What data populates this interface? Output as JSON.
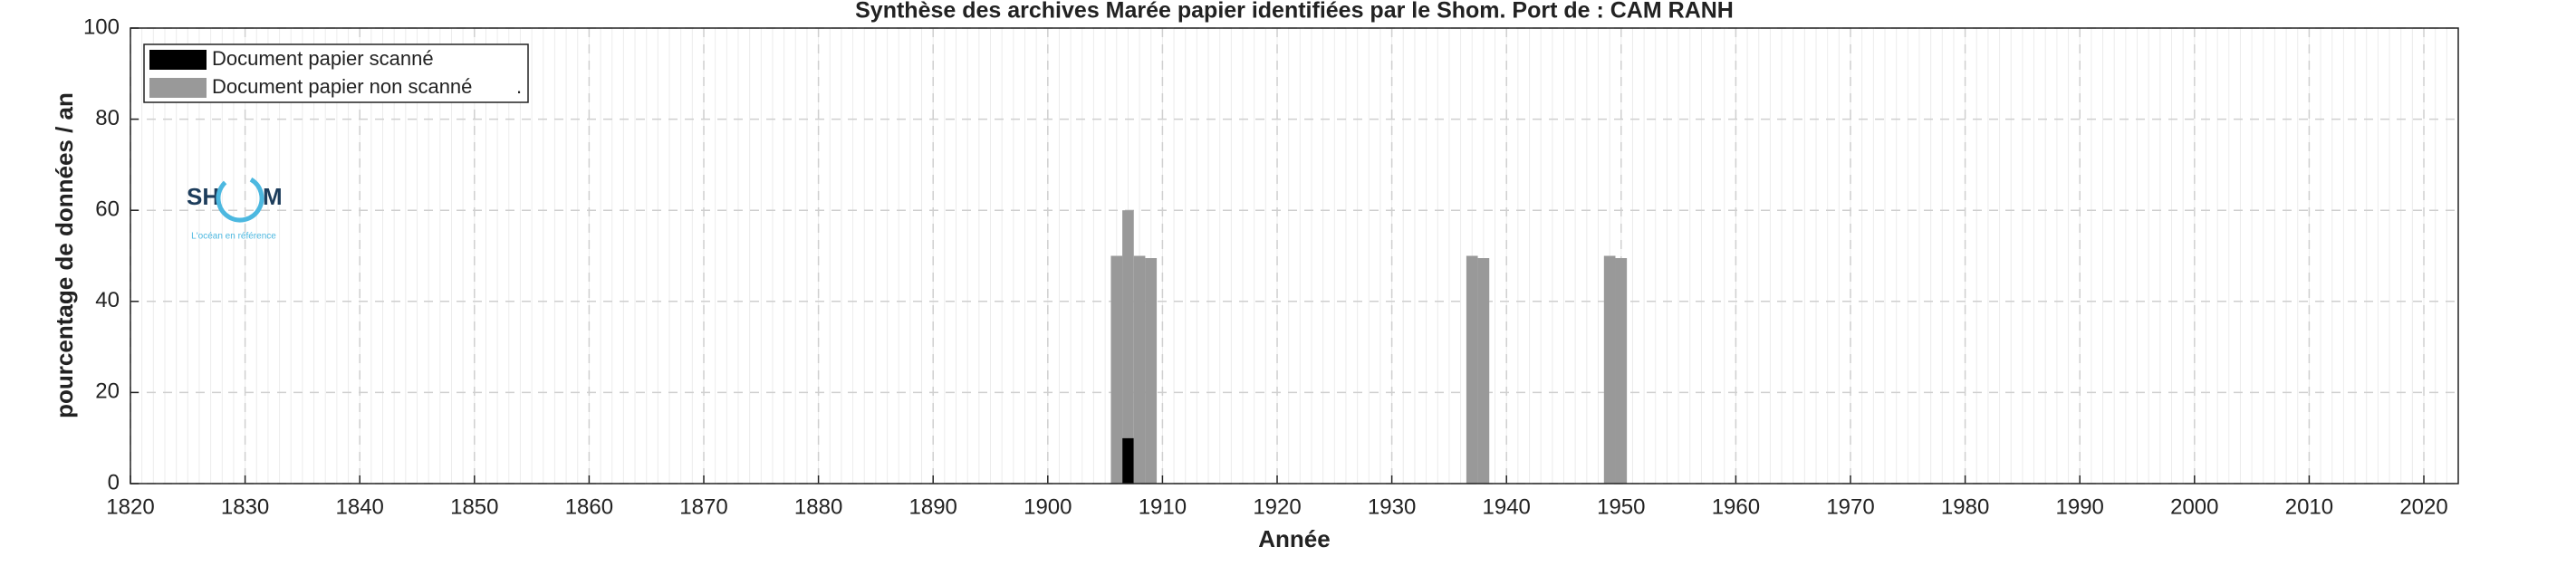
{
  "chart_data": {
    "type": "bar",
    "title": "Synthèse des archives Marée papier identifiées par le Shom. Port de : CAM RANH",
    "xlabel": "Année",
    "ylabel": "pourcentage de données / an",
    "x": [
      1906,
      1907,
      1908,
      1909,
      1937,
      1938,
      1949,
      1950
    ],
    "stacked": true,
    "series": [
      {
        "name": "Document papier scanné",
        "color": "#000000",
        "values": [
          0,
          10,
          0,
          0,
          0,
          0,
          0,
          0
        ]
      },
      {
        "name": "Document papier non scanné",
        "color": "#999999",
        "values": [
          50,
          50,
          50,
          49.5,
          50,
          49.5,
          50,
          49.5
        ]
      }
    ],
    "legend_suffix": ".",
    "legend": "upper left",
    "xlim": [
      1820,
      2023
    ],
    "xticks": [
      1820,
      1830,
      1840,
      1850,
      1860,
      1870,
      1880,
      1890,
      1900,
      1910,
      1920,
      1930,
      1940,
      1950,
      1960,
      1970,
      1980,
      1990,
      2000,
      2010,
      2020
    ],
    "ylim": [
      0,
      100
    ],
    "yticks": [
      0,
      20,
      40,
      60,
      80,
      100
    ],
    "grid": true,
    "minor_grid": true
  },
  "logo": {
    "left": "SH",
    "right": "M",
    "tagline": "L'océan en référence"
  }
}
